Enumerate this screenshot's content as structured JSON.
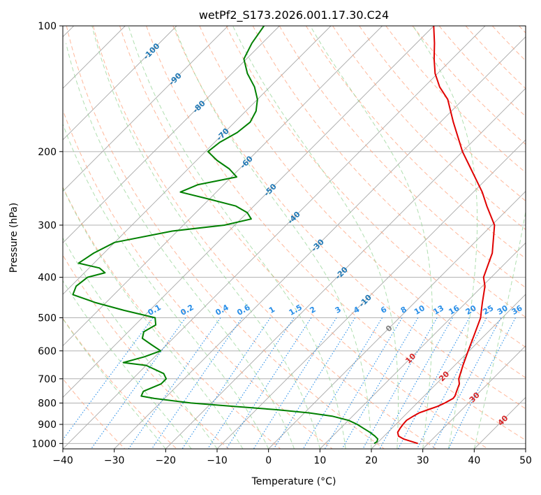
{
  "chart_data": {
    "type": "skew-t",
    "title": "wetPf2_S173.2026.001.17.30.C24",
    "xlabel": "Temperature (°C)",
    "ylabel": "Pressure (hPa)",
    "xlim": [
      -40,
      50
    ],
    "ylim": [
      1030,
      100
    ],
    "x_ticks": [
      -40,
      -30,
      -20,
      -10,
      0,
      10,
      20,
      30,
      40,
      50
    ],
    "y_ticks": [
      100,
      200,
      300,
      400,
      500,
      600,
      700,
      800,
      900,
      1000
    ],
    "grid": true,
    "colors": {
      "temperature": "#e00000",
      "dewpoint": "#008000",
      "isotherm": "#1f77b4",
      "mixing_ratio": "#2a8fe8",
      "dry_adiabat": "#ffa07a",
      "moist_adiabat": "#8fd18f",
      "warm_isotherm_label": "#d62728",
      "zero_isotherm_label": "#808080"
    },
    "isotherm_labels": [
      {
        "text": "-100",
        "t": -100
      },
      {
        "text": "-90",
        "t": -90
      },
      {
        "text": "-80",
        "t": -80
      },
      {
        "text": "-70",
        "t": -70
      },
      {
        "text": "-60",
        "t": -60
      },
      {
        "text": "-50",
        "t": -50
      },
      {
        "text": "-40",
        "t": -40
      },
      {
        "text": "-30",
        "t": -30
      },
      {
        "text": "-20",
        "t": -20
      },
      {
        "text": "-10",
        "t": -10
      },
      {
        "text": "0",
        "t": 0
      },
      {
        "text": "10",
        "t": 10
      },
      {
        "text": "20",
        "t": 20
      },
      {
        "text": "30",
        "t": 30
      },
      {
        "text": "40",
        "t": 40
      }
    ],
    "mixing_ratio_labels": [
      "0.1",
      "0.2",
      "0.4",
      "0.6",
      "1",
      "1.5",
      "2",
      "3",
      "4",
      "6",
      "8",
      "10",
      "13",
      "16",
      "20",
      "25",
      "30",
      "36"
    ],
    "series": [
      {
        "points": [
          [
            1000,
            28
          ],
          [
            990,
            26.5
          ],
          [
            975,
            24.3
          ],
          [
            960,
            22.8
          ],
          [
            940,
            21.9
          ],
          [
            920,
            21.6
          ],
          [
            900,
            21.4
          ],
          [
            880,
            21.3
          ],
          [
            860,
            21.8
          ],
          [
            845,
            22.3
          ],
          [
            830,
            23.4
          ],
          [
            815,
            24.6
          ],
          [
            800,
            25.4
          ],
          [
            780,
            26.1
          ],
          [
            770,
            26.0
          ],
          [
            750,
            25.4
          ],
          [
            720,
            24.5
          ],
          [
            700,
            23.4
          ],
          [
            650,
            21.6
          ],
          [
            600,
            19.8
          ],
          [
            550,
            17.9
          ],
          [
            500,
            15.8
          ],
          [
            480,
            14.5
          ],
          [
            460,
            13.2
          ],
          [
            420,
            10.5
          ],
          [
            400,
            8.5
          ],
          [
            350,
            5.5
          ],
          [
            300,
            0.5
          ],
          [
            270,
            -4.7
          ],
          [
            250,
            -8.3
          ],
          [
            220,
            -15.0
          ],
          [
            200,
            -20.0
          ],
          [
            170,
            -27.5
          ],
          [
            150,
            -33.0
          ],
          [
            140,
            -37.0
          ],
          [
            130,
            -40.5
          ],
          [
            120,
            -43.5
          ],
          [
            110,
            -46.5
          ],
          [
            100,
            -50.0
          ]
        ]
      },
      {
        "points": [
          [
            1000,
            19.5
          ],
          [
            990,
            19.7
          ],
          [
            975,
            19.3
          ],
          [
            960,
            18.2
          ],
          [
            940,
            16.5
          ],
          [
            920,
            14.5
          ],
          [
            900,
            12.5
          ],
          [
            880,
            10.0
          ],
          [
            860,
            6.0
          ],
          [
            845,
            1.0
          ],
          [
            830,
            -6.0
          ],
          [
            815,
            -15.0
          ],
          [
            800,
            -24.0
          ],
          [
            780,
            -32.0
          ],
          [
            770,
            -35.0
          ],
          [
            750,
            -35.5
          ],
          [
            720,
            -33.5
          ],
          [
            700,
            -33.5
          ],
          [
            680,
            -35.0
          ],
          [
            650,
            -40.0
          ],
          [
            640,
            -45.0
          ],
          [
            620,
            -42.0
          ],
          [
            600,
            -40.0
          ],
          [
            580,
            -43.0
          ],
          [
            560,
            -46.0
          ],
          [
            540,
            -47.0
          ],
          [
            520,
            -46.0
          ],
          [
            500,
            -47.5
          ],
          [
            480,
            -55.0
          ],
          [
            460,
            -62.0
          ],
          [
            440,
            -68.0
          ],
          [
            420,
            -69.0
          ],
          [
            400,
            -68.5
          ],
          [
            390,
            -66.0
          ],
          [
            380,
            -68.0
          ],
          [
            370,
            -73.0
          ],
          [
            350,
            -72.0
          ],
          [
            330,
            -70.0
          ],
          [
            310,
            -61.0
          ],
          [
            300,
            -52.0
          ],
          [
            290,
            -48.0
          ],
          [
            280,
            -50.0
          ],
          [
            270,
            -53.5
          ],
          [
            260,
            -60.0
          ],
          [
            250,
            -67.0
          ],
          [
            240,
            -65.0
          ],
          [
            230,
            -59.0
          ],
          [
            220,
            -62.0
          ],
          [
            210,
            -66.0
          ],
          [
            200,
            -69.5
          ],
          [
            190,
            -69.0
          ],
          [
            180,
            -67.5
          ],
          [
            170,
            -67.0
          ],
          [
            160,
            -68.0
          ],
          [
            150,
            -70.0
          ],
          [
            140,
            -73.0
          ],
          [
            130,
            -77.0
          ],
          [
            120,
            -80.5
          ],
          [
            110,
            -82.0
          ],
          [
            100,
            -83.0
          ]
        ]
      }
    ]
  }
}
